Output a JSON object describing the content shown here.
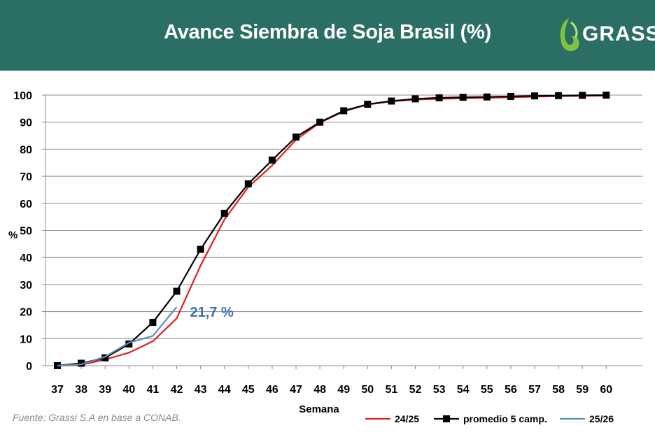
{
  "header": {
    "title": "Avance Siembra de Soja Brasil (%)",
    "logo_text": "GRASSI",
    "background_color": "#2b6e63"
  },
  "source": "Fuente: Grassi S.A en base a CONAB.",
  "chart_data": {
    "type": "line",
    "xlabel": "Semana",
    "ylabel": "%",
    "x": [
      37,
      38,
      39,
      40,
      41,
      42,
      43,
      44,
      45,
      46,
      47,
      48,
      49,
      50,
      51,
      52,
      53,
      54,
      55,
      56,
      57,
      58,
      59,
      60
    ],
    "xlim": [
      37,
      60
    ],
    "ylim": [
      0,
      100
    ],
    "yticks": [
      0,
      10,
      20,
      30,
      40,
      50,
      60,
      70,
      80,
      90,
      100
    ],
    "grid": true,
    "legend_position": "bottom-right",
    "series": [
      {
        "name": "24/25",
        "color": "#e02020",
        "marker": "none",
        "values": [
          0,
          0.3,
          2.3,
          4.8,
          9,
          17.5,
          37,
          54,
          66,
          74,
          83.5,
          89.8,
          94,
          96.5,
          97.7,
          98.3,
          98.6,
          98.8,
          99,
          99.2,
          99.4,
          99.6,
          99.7,
          99.8
        ]
      },
      {
        "name": "promedio 5 camp.",
        "color": "#000000",
        "marker": "square",
        "values": [
          0,
          0.9,
          2.9,
          8,
          16,
          27.5,
          43,
          56.3,
          67.2,
          76,
          84.5,
          90,
          94.2,
          96.6,
          97.8,
          98.6,
          99,
          99.2,
          99.3,
          99.5,
          99.7,
          99.8,
          99.9,
          100
        ]
      },
      {
        "name": "25/26",
        "color": "#5b8fb9",
        "marker": "none",
        "values": [
          0,
          0.5,
          3.3,
          8.5,
          11,
          21.7,
          null,
          null,
          null,
          null,
          null,
          null,
          null,
          null,
          null,
          null,
          null,
          null,
          null,
          null,
          null,
          null,
          null,
          null
        ]
      }
    ],
    "annotations": [
      {
        "text": "21,7 %",
        "x": 42,
        "y": 21.7,
        "color": "#3e6fb5"
      }
    ]
  }
}
